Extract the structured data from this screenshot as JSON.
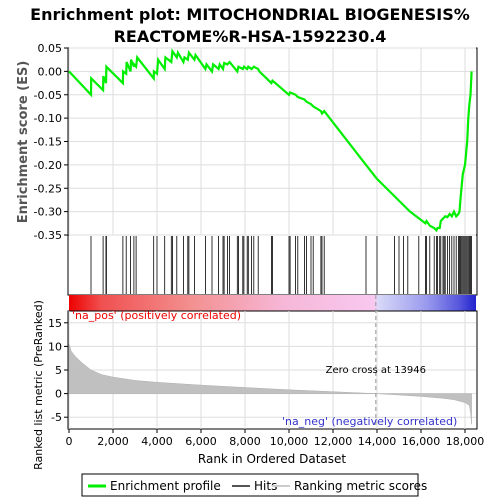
{
  "title_line1": "Enrichment plot: MITOCHONDRIAL BIOGENESIS%",
  "title_line2": "REACTOME%R-HSA-1592230.4",
  "colors": {
    "enrichment_line": "#00ee00",
    "hits": "#000000",
    "ranking_fill": "#c0c0c0",
    "pos_label": "#ee0000",
    "neg_label": "#3333cc",
    "zero_line": "#999999",
    "grid": "#dddddd"
  },
  "chart_data": [
    {
      "name": "enrichment",
      "type": "line",
      "ylabel": "Enrichment score (ES)",
      "ylim": [
        -0.35,
        0.05
      ],
      "yticks": [
        0.05,
        0.0,
        -0.05,
        -0.1,
        -0.15,
        -0.2,
        -0.25,
        -0.3,
        -0.35
      ],
      "ytick_labels": [
        "0.05",
        "0.00",
        "-0.05",
        "-0.10",
        "-0.15",
        "-0.20",
        "-0.25",
        "-0.30",
        "-0.35"
      ],
      "xlim": [
        0,
        18500
      ],
      "grid": true,
      "series": [
        {
          "name": "Enrichment profile",
          "x": [
            0,
            1000,
            1010,
            1550,
            1560,
            1680,
            1700,
            2450,
            2460,
            2600,
            2620,
            2800,
            2820,
            2950,
            2960,
            3050,
            3100,
            3850,
            3860,
            4000,
            4050,
            4350,
            4380,
            4650,
            4700,
            4900,
            4950,
            5200,
            5250,
            5400,
            5450,
            5700,
            5750,
            6200,
            6250,
            6500,
            6550,
            6800,
            6850,
            7000,
            7050,
            7200,
            7300,
            7650,
            7700,
            7900,
            7950,
            8100,
            8150,
            8300,
            8400,
            8600,
            8650,
            9200,
            9250,
            10000,
            10050,
            10300,
            10400,
            10700,
            10800,
            11000,
            11100,
            11450,
            11500,
            11600,
            13500,
            14000,
            15500,
            16200,
            16250,
            16400,
            16600,
            16700,
            16750,
            16850,
            16900,
            17000,
            17100,
            17200,
            17300,
            17400,
            17500,
            17600,
            17700,
            17750,
            17800,
            17900,
            18000,
            18100,
            18150,
            18200,
            18250,
            18300
          ],
          "y": [
            0.0,
            -0.05,
            -0.015,
            -0.04,
            -0.01,
            -0.025,
            0.01,
            -0.025,
            0.0,
            -0.005,
            0.02,
            0.0,
            0.025,
            0.01,
            0.015,
            0.01,
            0.03,
            -0.015,
            0.0,
            -0.005,
            0.025,
            0.005,
            0.03,
            0.02,
            0.043,
            0.03,
            0.04,
            0.02,
            0.03,
            0.025,
            0.04,
            0.025,
            0.035,
            0.005,
            0.015,
            0.0,
            0.015,
            0.005,
            0.015,
            0.005,
            0.018,
            0.015,
            0.02,
            0.0,
            0.01,
            0.005,
            0.01,
            0.005,
            0.01,
            0.005,
            0.01,
            0.005,
            0.0,
            -0.025,
            -0.02,
            -0.05,
            -0.045,
            -0.05,
            -0.055,
            -0.06,
            -0.065,
            -0.07,
            -0.075,
            -0.085,
            -0.09,
            -0.085,
            -0.2,
            -0.23,
            -0.3,
            -0.325,
            -0.32,
            -0.33,
            -0.335,
            -0.34,
            -0.335,
            -0.335,
            -0.32,
            -0.315,
            -0.31,
            -0.312,
            -0.305,
            -0.31,
            -0.3,
            -0.31,
            -0.305,
            -0.3,
            -0.27,
            -0.22,
            -0.2,
            -0.15,
            -0.1,
            -0.07,
            -0.05,
            0.0
          ]
        }
      ]
    },
    {
      "name": "hits",
      "type": "scatter",
      "hits_x": [
        1000,
        1550,
        1680,
        1700,
        2450,
        2600,
        2800,
        2950,
        3050,
        3850,
        4000,
        4350,
        4650,
        4700,
        4900,
        5200,
        5400,
        5450,
        5700,
        6200,
        6500,
        6800,
        7000,
        7050,
        7200,
        7300,
        7650,
        7700,
        7900,
        7950,
        8100,
        8150,
        8300,
        8400,
        8600,
        9200,
        9250,
        10000,
        10050,
        10300,
        10400,
        10700,
        10800,
        11000,
        11100,
        11450,
        11500,
        11600,
        13500,
        14000,
        14800,
        15000,
        15200,
        15400,
        15900,
        16200,
        16250,
        16400,
        16600,
        16700,
        16750,
        16850,
        16900,
        17000,
        17050,
        17100,
        17200,
        17300,
        17400,
        17500,
        17600,
        17700,
        17750,
        17800,
        17850,
        17900,
        17950,
        18000,
        18050,
        18100,
        18150,
        18200,
        18250,
        18300
      ]
    },
    {
      "name": "ranking",
      "type": "area",
      "ylabel": "Ranked list metric (PreRanked)",
      "xlabel": "Rank in Ordered Dataset",
      "ylim": [
        -7.5,
        17.5
      ],
      "yticks": [
        15,
        10,
        5,
        0,
        -5
      ],
      "xlim": [
        0,
        18500
      ],
      "xticks": [
        0,
        2000,
        4000,
        6000,
        8000,
        10000,
        12000,
        14000,
        16000,
        18000
      ],
      "xtick_labels": [
        "0",
        "2,000",
        "4,000",
        "6,000",
        "8,000",
        "10,000",
        "12,000",
        "14,000",
        "16,000",
        "18,000"
      ],
      "x": [
        0,
        100,
        300,
        600,
        1000,
        1500,
        2000,
        3000,
        4000,
        6000,
        8000,
        10000,
        12000,
        13946,
        15000,
        16000,
        17000,
        17500,
        18000,
        18200,
        18250,
        18300
      ],
      "y": [
        10.5,
        9.0,
        7.8,
        6.5,
        5.0,
        4.0,
        3.5,
        2.8,
        2.4,
        1.8,
        1.3,
        0.8,
        0.4,
        0.0,
        -0.3,
        -0.6,
        -1.0,
        -1.3,
        -1.9,
        -2.5,
        -4.0,
        -6.5
      ],
      "zero_cross": 13946,
      "zero_cross_label": "Zero cross at 13946",
      "pos_label": "'na_pos' (positively correlated)",
      "neg_label": "'na_neg' (negatively correlated)"
    }
  ],
  "legend": {
    "items": [
      {
        "label": "Enrichment profile",
        "color": "#00ee00"
      },
      {
        "label": "Hits",
        "color": "#555555"
      },
      {
        "label": "Ranking metric scores",
        "color": "#cccccc"
      }
    ]
  }
}
